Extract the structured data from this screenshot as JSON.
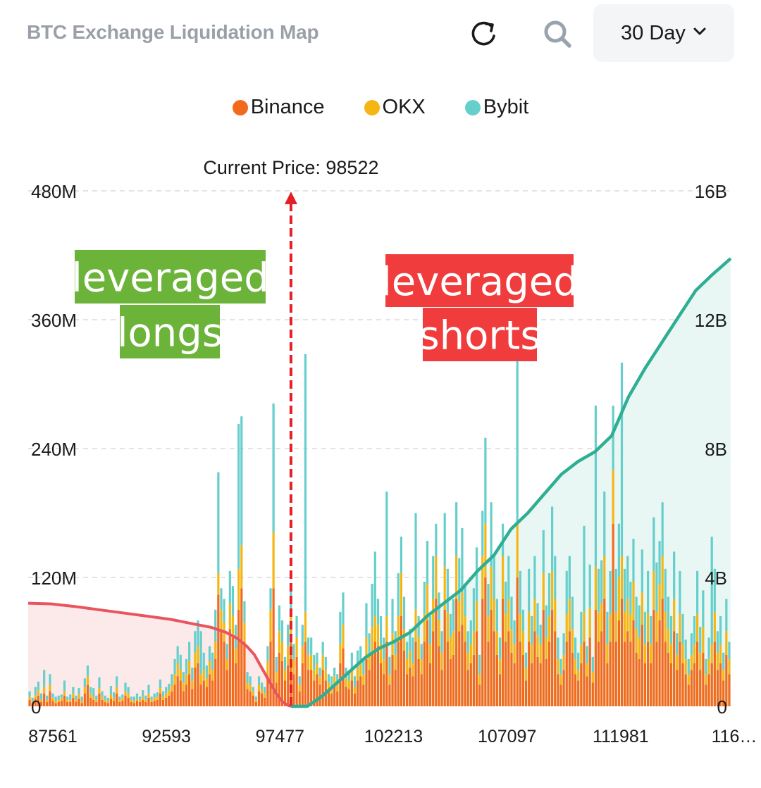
{
  "header": {
    "title": "BTC Exchange Liquidation Map",
    "refresh_icon": "refresh-icon",
    "search_icon": "search-icon",
    "period_label": "30 Day",
    "period_icon": "chevron-down-icon"
  },
  "legend": [
    {
      "label": "Binance",
      "color": "#f26b1d"
    },
    {
      "label": "OKX",
      "color": "#f5b614"
    },
    {
      "label": "Bybit",
      "color": "#66cfcc"
    }
  ],
  "annotations": {
    "current_price": "Current Price: 98522",
    "longs_line1": "leveraged",
    "longs_line2": "longs",
    "shorts_line1": "leveraged",
    "shorts_line2": "shorts",
    "longs_bg": "#6cb33a",
    "shorts_bg": "#f03c3c"
  },
  "chart_data": {
    "type": "bar",
    "stacked": true,
    "x_range": [
      87561,
      116865
    ],
    "current_price": 98522,
    "x_ticks": [
      "87561",
      "92593",
      "97477",
      "102213",
      "107097",
      "111981",
      "116…"
    ],
    "y_left": {
      "ticks": [
        "0",
        "120M",
        "240M",
        "360M",
        "480M"
      ],
      "max_millions": 480
    },
    "y_right": {
      "ticks": [
        "0",
        "4B",
        "8B",
        "12B",
        "16B"
      ],
      "max_billions": 16
    },
    "grid": true,
    "legend_position": "top-center",
    "series_colors": {
      "Binance": "#f26b1d",
      "OKX": "#f5b614",
      "Bybit": "#66cfcc"
    },
    "bars": {
      "unit": "M",
      "series_order": [
        "Binance",
        "OKX",
        "Bybit"
      ],
      "values": [
        [
          6,
          3,
          5
        ],
        [
          3,
          2,
          3
        ],
        [
          7,
          3,
          8
        ],
        [
          10,
          5,
          8
        ],
        [
          4,
          2,
          6
        ],
        [
          12,
          6,
          16
        ],
        [
          4,
          2,
          4
        ],
        [
          14,
          6,
          10
        ],
        [
          5,
          3,
          4
        ],
        [
          3,
          2,
          4
        ],
        [
          4,
          2,
          4
        ],
        [
          5,
          3,
          3
        ],
        [
          10,
          4,
          10
        ],
        [
          4,
          2,
          3
        ],
        [
          4,
          2,
          5
        ],
        [
          8,
          4,
          6
        ],
        [
          4,
          2,
          4
        ],
        [
          7,
          4,
          6
        ],
        [
          3,
          2,
          4
        ],
        [
          12,
          6,
          8
        ],
        [
          20,
          8,
          10
        ],
        [
          8,
          4,
          6
        ],
        [
          6,
          3,
          8
        ],
        [
          4,
          2,
          4
        ],
        [
          12,
          5,
          10
        ],
        [
          6,
          3,
          5
        ],
        [
          4,
          2,
          4
        ],
        [
          3,
          2,
          3
        ],
        [
          7,
          4,
          8
        ],
        [
          5,
          3,
          5
        ],
        [
          12,
          6,
          10
        ],
        [
          4,
          2,
          3
        ],
        [
          5,
          3,
          3
        ],
        [
          10,
          4,
          8
        ],
        [
          8,
          4,
          6
        ],
        [
          4,
          2,
          3
        ],
        [
          3,
          2,
          4
        ],
        [
          5,
          2,
          5
        ],
        [
          4,
          2,
          3
        ],
        [
          6,
          3,
          6
        ],
        [
          4,
          2,
          4
        ],
        [
          8,
          4,
          8
        ],
        [
          4,
          2,
          3
        ],
        [
          5,
          3,
          4
        ],
        [
          6,
          3,
          4
        ],
        [
          12,
          5,
          8
        ],
        [
          6,
          3,
          5
        ],
        [
          8,
          4,
          6
        ],
        [
          10,
          5,
          6
        ],
        [
          14,
          6,
          10
        ],
        [
          20,
          10,
          14
        ],
        [
          28,
          12,
          16
        ],
        [
          24,
          10,
          14
        ],
        [
          14,
          8,
          10
        ],
        [
          20,
          10,
          14
        ],
        [
          30,
          12,
          18
        ],
        [
          16,
          8,
          12
        ],
        [
          36,
          14,
          20
        ],
        [
          40,
          16,
          24
        ],
        [
          20,
          10,
          40
        ],
        [
          24,
          10,
          16
        ],
        [
          18,
          8,
          12
        ],
        [
          30,
          12,
          14
        ],
        [
          24,
          10,
          16
        ],
        [
          44,
          16,
          30
        ],
        [
          104,
          20,
          94
        ],
        [
          70,
          20,
          20
        ],
        [
          60,
          18,
          22
        ],
        [
          34,
          10,
          14
        ],
        [
          72,
          24,
          30
        ],
        [
          64,
          20,
          28
        ],
        [
          40,
          14,
          22
        ],
        [
          90,
          38,
          135
        ],
        [
          110,
          40,
          120
        ],
        [
          60,
          18,
          20
        ],
        [
          16,
          6,
          10
        ],
        [
          14,
          6,
          8
        ],
        [
          10,
          4,
          4
        ],
        [
          4,
          2,
          3
        ],
        [
          14,
          6,
          8
        ],
        [
          12,
          4,
          6
        ],
        [
          8,
          4,
          6
        ],
        [
          28,
          14,
          14
        ],
        [
          60,
          30,
          20
        ],
        [
          110,
          52,
          120
        ],
        [
          22,
          10,
          14
        ],
        [
          50,
          20,
          24
        ],
        [
          42,
          18,
          20
        ],
        [
          24,
          10,
          12
        ],
        [
          38,
          18,
          20
        ],
        [
          60,
          28,
          26
        ],
        [
          30,
          14,
          14
        ],
        [
          46,
          18,
          20
        ],
        [
          14,
          6,
          8
        ],
        [
          40,
          16,
          20
        ],
        [
          60,
          28,
          240
        ],
        [
          34,
          14,
          16
        ],
        [
          34,
          14,
          16
        ],
        [
          24,
          10,
          14
        ],
        [
          30,
          10,
          10
        ],
        [
          20,
          8,
          8
        ],
        [
          34,
          14,
          12
        ],
        [
          24,
          10,
          12
        ],
        [
          16,
          6,
          8
        ],
        [
          12,
          6,
          10
        ],
        [
          20,
          8,
          8
        ],
        [
          14,
          6,
          10
        ],
        [
          40,
          18,
          30
        ],
        [
          54,
          22,
          30
        ],
        [
          18,
          8,
          10
        ],
        [
          16,
          8,
          8
        ],
        [
          24,
          12,
          14
        ],
        [
          12,
          6,
          10
        ],
        [
          24,
          12,
          16
        ],
        [
          28,
          14,
          14
        ],
        [
          20,
          10,
          14
        ],
        [
          44,
          20,
          32
        ],
        [
          34,
          14,
          20
        ],
        [
          50,
          24,
          40
        ],
        [
          60,
          24,
          60
        ],
        [
          56,
          20,
          24
        ],
        [
          40,
          18,
          26
        ],
        [
          30,
          14,
          20
        ],
        [
          60,
          24,
          116
        ],
        [
          20,
          10,
          16
        ],
        [
          48,
          20,
          32
        ],
        [
          34,
          14,
          22
        ],
        [
          60,
          24,
          40
        ],
        [
          84,
          40,
          34
        ],
        [
          52,
          20,
          30
        ],
        [
          30,
          14,
          16
        ],
        [
          36,
          16,
          20
        ],
        [
          28,
          12,
          24
        ],
        [
          60,
          30,
          90
        ],
        [
          44,
          20,
          20
        ],
        [
          30,
          14,
          14
        ],
        [
          60,
          26,
          30
        ],
        [
          80,
          34,
          40
        ],
        [
          40,
          18,
          26
        ],
        [
          70,
          30,
          40
        ],
        [
          100,
          40,
          30
        ],
        [
          56,
          24,
          26
        ],
        [
          34,
          16,
          20
        ],
        [
          90,
          40,
          50
        ],
        [
          60,
          28,
          40
        ],
        [
          44,
          20,
          22
        ],
        [
          48,
          22,
          30
        ],
        [
          100,
          40,
          50
        ],
        [
          70,
          28,
          40
        ],
        [
          76,
          30,
          60
        ],
        [
          60,
          24,
          30
        ],
        [
          34,
          16,
          20
        ],
        [
          40,
          18,
          22
        ],
        [
          48,
          22,
          40
        ],
        [
          70,
          28,
          50
        ],
        [
          20,
          10,
          18
        ],
        [
          100,
          40,
          42
        ],
        [
          120,
          50,
          80
        ],
        [
          60,
          24,
          30
        ],
        [
          90,
          40,
          60
        ],
        [
          70,
          30,
          40
        ],
        [
          48,
          22,
          30
        ],
        [
          30,
          14,
          20
        ],
        [
          100,
          40,
          30
        ],
        [
          60,
          26,
          30
        ],
        [
          70,
          30,
          40
        ],
        [
          50,
          22,
          30
        ],
        [
          40,
          18,
          22
        ],
        [
          120,
          50,
          160
        ],
        [
          60,
          26,
          40
        ],
        [
          48,
          22,
          20
        ],
        [
          24,
          12,
          14
        ],
        [
          60,
          28,
          40
        ],
        [
          40,
          18,
          26
        ],
        [
          70,
          30,
          40
        ],
        [
          46,
          20,
          30
        ],
        [
          40,
          18,
          18
        ],
        [
          90,
          34,
          40
        ],
        [
          44,
          20,
          30
        ],
        [
          60,
          24,
          40
        ],
        [
          90,
          36,
          60
        ],
        [
          70,
          30,
          40
        ],
        [
          30,
          14,
          20
        ],
        [
          20,
          10,
          14
        ],
        [
          34,
          14,
          20
        ],
        [
          60,
          26,
          40
        ],
        [
          70,
          30,
          40
        ],
        [
          50,
          22,
          30
        ],
        [
          30,
          14,
          20
        ],
        [
          24,
          10,
          16
        ],
        [
          40,
          18,
          30
        ],
        [
          60,
          28,
          80
        ],
        [
          28,
          12,
          16
        ],
        [
          64,
          28,
          40
        ],
        [
          22,
          10,
          14
        ],
        [
          90,
          40,
          150
        ],
        [
          60,
          28,
          40
        ],
        [
          70,
          26,
          40
        ],
        [
          100,
          40,
          60
        ],
        [
          40,
          18,
          30
        ],
        [
          60,
          26,
          40
        ],
        [
          170,
          50,
          60
        ],
        [
          60,
          28,
          40
        ],
        [
          80,
          40,
          50
        ],
        [
          100,
          40,
          180
        ],
        [
          60,
          28,
          40
        ],
        [
          70,
          30,
          40
        ],
        [
          60,
          26,
          30
        ],
        [
          80,
          36,
          40
        ],
        [
          50,
          22,
          30
        ],
        [
          44,
          20,
          30
        ],
        [
          76,
          30,
          40
        ],
        [
          40,
          18,
          30
        ],
        [
          60,
          26,
          40
        ],
        [
          40,
          18,
          26
        ],
        [
          90,
          36,
          50
        ],
        [
          60,
          28,
          46
        ],
        [
          80,
          34,
          40
        ],
        [
          100,
          40,
          50
        ],
        [
          60,
          28,
          40
        ],
        [
          50,
          22,
          30
        ],
        [
          40,
          18,
          26
        ],
        [
          70,
          30,
          44
        ],
        [
          34,
          14,
          20
        ],
        [
          60,
          26,
          40
        ],
        [
          40,
          18,
          28
        ],
        [
          30,
          14,
          18
        ],
        [
          20,
          10,
          14
        ],
        [
          34,
          14,
          20
        ],
        [
          40,
          18,
          26
        ],
        [
          60,
          26,
          40
        ],
        [
          34,
          16,
          24
        ],
        [
          50,
          24,
          34
        ],
        [
          20,
          10,
          14
        ],
        [
          30,
          14,
          20
        ],
        [
          40,
          18,
          100
        ],
        [
          60,
          28,
          40
        ],
        [
          34,
          16,
          20
        ],
        [
          40,
          18,
          26
        ],
        [
          24,
          10,
          16
        ],
        [
          48,
          22,
          30
        ],
        [
          30,
          14,
          16
        ]
      ]
    },
    "cumulative_long": {
      "unit": "B",
      "x": [
        87561,
        88500,
        89500,
        90500,
        91500,
        92500,
        93500,
        94500,
        95200,
        95800,
        96300,
        96700,
        97000,
        97300,
        97600,
        97900,
        98200,
        98400,
        98522
      ],
      "y": [
        3.2,
        3.18,
        3.1,
        3.0,
        2.9,
        2.8,
        2.7,
        2.55,
        2.45,
        2.3,
        2.1,
        1.85,
        1.6,
        1.2,
        0.8,
        0.4,
        0.12,
        0.03,
        0.0
      ]
    },
    "cumulative_short": {
      "unit": "B",
      "x": [
        98522,
        99200,
        99800,
        100400,
        101000,
        101600,
        102200,
        102800,
        103500,
        104200,
        104900,
        105600,
        106300,
        107000,
        107700,
        108400,
        109100,
        109800,
        110500,
        111200,
        111900,
        112600,
        113300,
        114000,
        114700,
        115400,
        116100,
        116865
      ],
      "y": [
        0.0,
        0.0,
        0.3,
        0.7,
        1.1,
        1.5,
        1.8,
        2.0,
        2.3,
        2.8,
        3.2,
        3.6,
        4.2,
        4.7,
        5.5,
        6.0,
        6.6,
        7.2,
        7.6,
        7.9,
        8.4,
        9.6,
        10.5,
        11.3,
        12.1,
        12.9,
        13.4,
        13.9
      ]
    }
  }
}
